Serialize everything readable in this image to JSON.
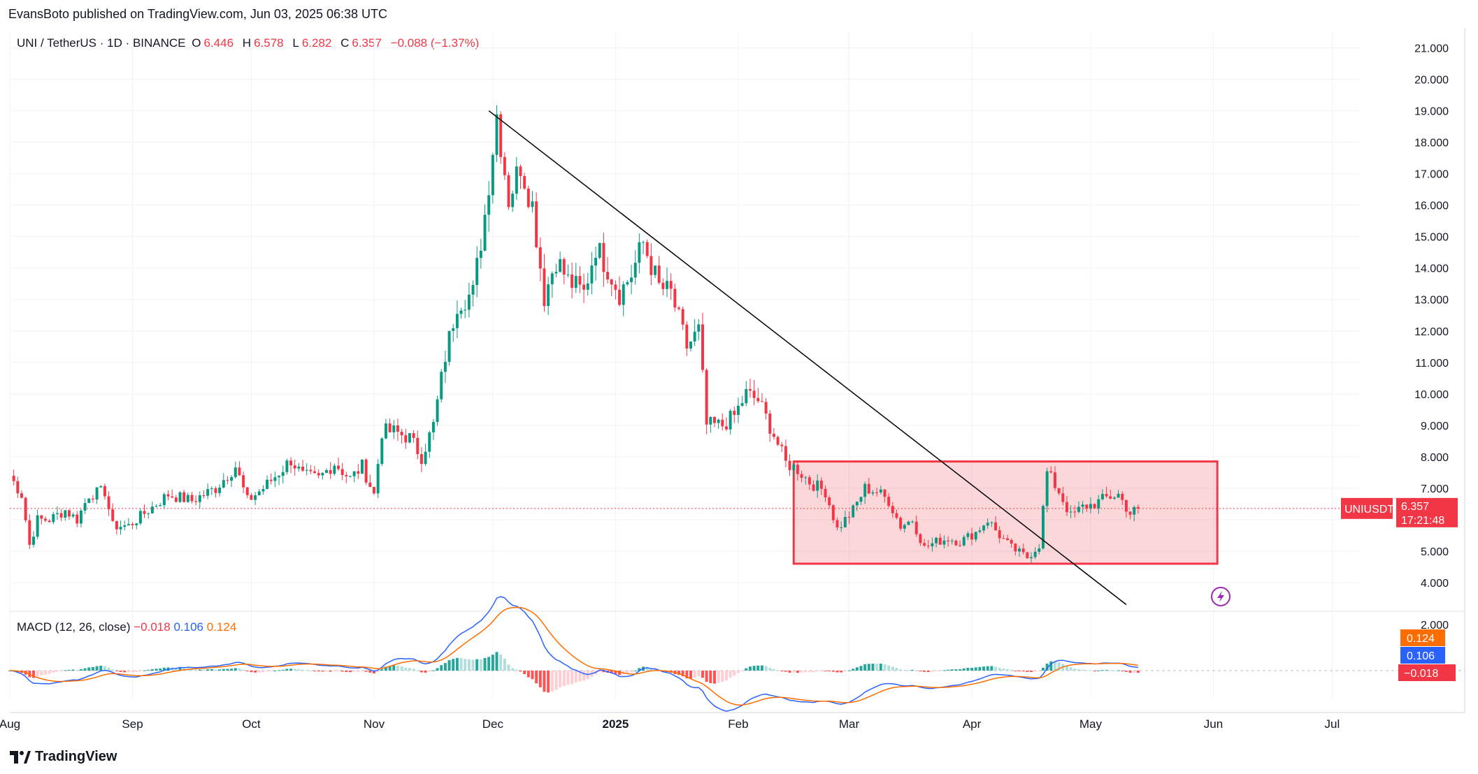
{
  "header": {
    "published": "EvansBoto published on TradingView.com, Jun 03, 2025 06:38 UTC"
  },
  "legend": {
    "symbol": "UNI / TetherUS · 1D · BINANCE",
    "o_label": "O",
    "o_value": "6.446",
    "h_label": "H",
    "h_value": "6.578",
    "l_label": "L",
    "l_value": "6.282",
    "c_label": "C",
    "c_value": "6.357",
    "change": "−0.088 (−1.37%)"
  },
  "macd_legend": {
    "label": "MACD (12, 26, close)",
    "hist": "−0.018",
    "macd": "0.106",
    "signal": "0.124"
  },
  "brand": {
    "name": "TradingView"
  },
  "price_badge": {
    "symbol": "UNIUSDT",
    "price": "6.357",
    "countdown": "17:21:48"
  },
  "macd_badges": {
    "signal": "0.124",
    "macd": "0.106",
    "hist": "−0.018"
  },
  "colors": {
    "up": "#089981",
    "down": "#f23645",
    "box": "#f23645",
    "macd": "#2962ff",
    "signal": "#ff6d00",
    "trendline": "#000000"
  },
  "icons": {
    "flash": "lightning-bolt-icon"
  },
  "chart_data": [
    {
      "type": "candlestick",
      "title": "UNI / TetherUS · 1D · BINANCE",
      "y_axis": {
        "ticks": [
          "21.000",
          "20.000",
          "19.000",
          "18.000",
          "17.000",
          "16.000",
          "15.000",
          "14.000",
          "13.000",
          "12.000",
          "11.000",
          "10.000",
          "9.000",
          "8.000",
          "7.000",
          "6.000",
          "5.000",
          "4.000"
        ],
        "range": [
          3.2,
          21.3
        ]
      },
      "x_axis": {
        "ticks": [
          "Aug",
          "Sep",
          "Oct",
          "Nov",
          "Dec",
          "2025",
          "Feb",
          "Mar",
          "Apr",
          "May",
          "Jun",
          "Jul"
        ],
        "range_days": [
          0,
          341
        ]
      },
      "anchors": [
        [
          0,
          7.4
        ],
        [
          3,
          6.8
        ],
        [
          5,
          5.2
        ],
        [
          7,
          6.0
        ],
        [
          10,
          6.0
        ],
        [
          14,
          6.3
        ],
        [
          17,
          6.0
        ],
        [
          20,
          6.8
        ],
        [
          24,
          6.9
        ],
        [
          26,
          5.8
        ],
        [
          30,
          5.8
        ],
        [
          34,
          6.2
        ],
        [
          40,
          6.8
        ],
        [
          46,
          6.6
        ],
        [
          52,
          7.0
        ],
        [
          57,
          7.7
        ],
        [
          60,
          6.6
        ],
        [
          64,
          7.0
        ],
        [
          68,
          7.5
        ],
        [
          71,
          7.9
        ],
        [
          74,
          7.4
        ],
        [
          78,
          7.3
        ],
        [
          82,
          7.8
        ],
        [
          86,
          7.3
        ],
        [
          89,
          7.7
        ],
        [
          92,
          6.8
        ],
        [
          94,
          8.8
        ],
        [
          97,
          8.8
        ],
        [
          101,
          8.6
        ],
        [
          104,
          8.0
        ],
        [
          107,
          9.0
        ],
        [
          110,
          11.2
        ],
        [
          113,
          12.9
        ],
        [
          117,
          13.2
        ],
        [
          120,
          15.7
        ],
        [
          123,
          18.9
        ],
        [
          126,
          16.2
        ],
        [
          129,
          17.3
        ],
        [
          132,
          16.0
        ],
        [
          135,
          13.1
        ],
        [
          138,
          14.3
        ],
        [
          141,
          13.6
        ],
        [
          145,
          13.2
        ],
        [
          148,
          14.7
        ],
        [
          151,
          14.0
        ],
        [
          154,
          13.2
        ],
        [
          157,
          13.8
        ],
        [
          160,
          14.8
        ],
        [
          164,
          13.4
        ],
        [
          167,
          13.2
        ],
        [
          171,
          11.5
        ],
        [
          174,
          12.0
        ],
        [
          176,
          9.0
        ],
        [
          180,
          9.0
        ],
        [
          183,
          9.3
        ],
        [
          186,
          10.0
        ],
        [
          189,
          9.8
        ],
        [
          193,
          8.7
        ],
        [
          196,
          7.8
        ],
        [
          199,
          7.6
        ],
        [
          202,
          7.2
        ],
        [
          206,
          6.9
        ],
        [
          209,
          5.7
        ],
        [
          213,
          6.3
        ],
        [
          216,
          7.0
        ],
        [
          219,
          6.9
        ],
        [
          222,
          6.6
        ],
        [
          225,
          5.8
        ],
        [
          228,
          6.0
        ],
        [
          231,
          5.1
        ],
        [
          234,
          5.3
        ],
        [
          237,
          5.4
        ],
        [
          240,
          5.3
        ],
        [
          244,
          5.6
        ],
        [
          247,
          6.0
        ],
        [
          250,
          5.5
        ],
        [
          253,
          5.1
        ],
        [
          257,
          4.8
        ],
        [
          260,
          5.2
        ],
        [
          262,
          7.5
        ],
        [
          265,
          6.9
        ],
        [
          268,
          6.1
        ],
        [
          271,
          6.4
        ],
        [
          274,
          6.5
        ],
        [
          277,
          6.7
        ],
        [
          280,
          6.8
        ],
        [
          283,
          6.2
        ],
        [
          285,
          6.357
        ]
      ],
      "rectangle": {
        "x_start_day": 198,
        "x_end_day": 305,
        "y_low": 4.6,
        "y_high": 7.85
      },
      "trendline": {
        "start": [
          121,
          19.0
        ],
        "end": [
          282,
          3.3
        ]
      },
      "last_price": 6.357
    },
    {
      "type": "line",
      "title": "MACD (12, 26, close)",
      "y_axis": {
        "ticks": [
          "2.000"
        ]
      },
      "series": [
        {
          "name": "MACD",
          "values_key": "macd"
        },
        {
          "name": "Signal",
          "values_key": "signal"
        },
        {
          "name": "Histogram",
          "values_key": "hist"
        }
      ],
      "last": {
        "hist": -0.018,
        "macd": 0.106,
        "signal": 0.124
      }
    }
  ]
}
